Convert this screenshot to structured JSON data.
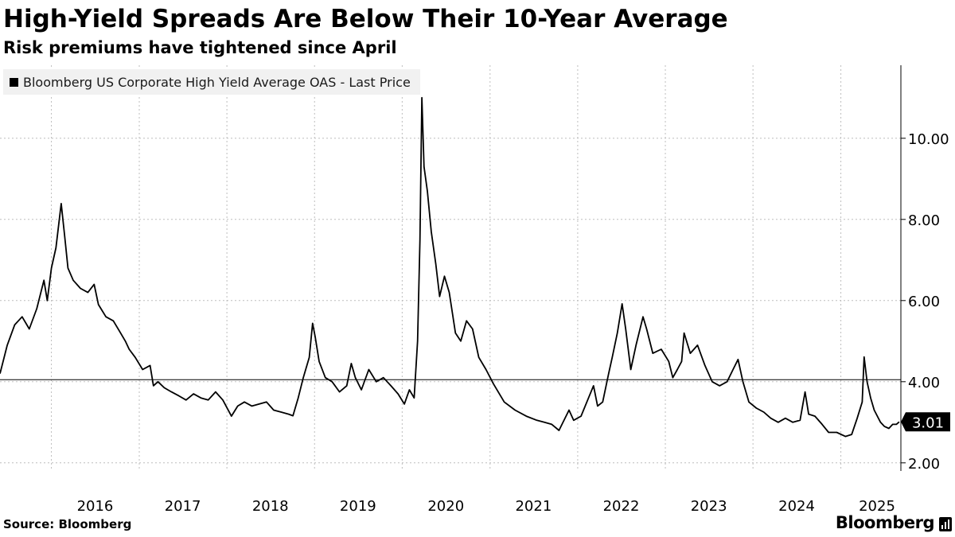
{
  "title": "High-Yield Spreads Are Below Their 10-Year Average",
  "subtitle": "Risk premiums have tightened since April",
  "source": "Source: Bloomberg",
  "brand": "Bloomberg",
  "chart_data": {
    "type": "line",
    "series": [
      {
        "name": "Bloomberg US Corporate High Yield Average OAS - Last Price",
        "color": "#000000",
        "points": [
          [
            "2015-06-01",
            4.2
          ],
          [
            "2015-07-01",
            4.9
          ],
          [
            "2015-08-01",
            5.4
          ],
          [
            "2015-09-01",
            5.6
          ],
          [
            "2015-10-01",
            5.3
          ],
          [
            "2015-11-01",
            5.8
          ],
          [
            "2015-12-01",
            6.5
          ],
          [
            "2015-12-15",
            6.0
          ],
          [
            "2016-01-01",
            6.8
          ],
          [
            "2016-01-20",
            7.3
          ],
          [
            "2016-02-11",
            8.39
          ],
          [
            "2016-02-25",
            7.6
          ],
          [
            "2016-03-10",
            6.8
          ],
          [
            "2016-04-01",
            6.5
          ],
          [
            "2016-05-01",
            6.3
          ],
          [
            "2016-06-01",
            6.2
          ],
          [
            "2016-06-27",
            6.4
          ],
          [
            "2016-07-15",
            5.9
          ],
          [
            "2016-08-15",
            5.6
          ],
          [
            "2016-09-15",
            5.5
          ],
          [
            "2016-10-15",
            5.2
          ],
          [
            "2016-11-04",
            5.0
          ],
          [
            "2016-11-20",
            4.8
          ],
          [
            "2016-12-15",
            4.6
          ],
          [
            "2017-01-15",
            4.3
          ],
          [
            "2017-02-15",
            4.4
          ],
          [
            "2017-03-01",
            3.9
          ],
          [
            "2017-03-20",
            4.0
          ],
          [
            "2017-04-15",
            3.85
          ],
          [
            "2017-05-15",
            3.75
          ],
          [
            "2017-06-15",
            3.65
          ],
          [
            "2017-07-15",
            3.55
          ],
          [
            "2017-08-15",
            3.7
          ],
          [
            "2017-09-15",
            3.6
          ],
          [
            "2017-10-15",
            3.55
          ],
          [
            "2017-11-15",
            3.75
          ],
          [
            "2017-12-15",
            3.55
          ],
          [
            "2018-01-20",
            3.15
          ],
          [
            "2018-02-15",
            3.4
          ],
          [
            "2018-03-15",
            3.5
          ],
          [
            "2018-04-15",
            3.4
          ],
          [
            "2018-05-15",
            3.45
          ],
          [
            "2018-06-15",
            3.5
          ],
          [
            "2018-07-15",
            3.3
          ],
          [
            "2018-08-15",
            3.25
          ],
          [
            "2018-09-15",
            3.2
          ],
          [
            "2018-10-03",
            3.16
          ],
          [
            "2018-10-25",
            3.6
          ],
          [
            "2018-11-15",
            4.1
          ],
          [
            "2018-12-10",
            4.6
          ],
          [
            "2018-12-24",
            5.44
          ],
          [
            "2019-01-04",
            5.1
          ],
          [
            "2019-01-20",
            4.5
          ],
          [
            "2019-02-15",
            4.1
          ],
          [
            "2019-03-15",
            4.0
          ],
          [
            "2019-04-15",
            3.75
          ],
          [
            "2019-05-15",
            3.9
          ],
          [
            "2019-06-03",
            4.45
          ],
          [
            "2019-06-20",
            4.1
          ],
          [
            "2019-07-15",
            3.8
          ],
          [
            "2019-08-15",
            4.3
          ],
          [
            "2019-09-15",
            4.0
          ],
          [
            "2019-10-15",
            4.1
          ],
          [
            "2019-11-15",
            3.9
          ],
          [
            "2019-12-15",
            3.7
          ],
          [
            "2020-01-10",
            3.45
          ],
          [
            "2020-01-31",
            3.8
          ],
          [
            "2020-02-20",
            3.6
          ],
          [
            "2020-03-05",
            5.0
          ],
          [
            "2020-03-15",
            7.5
          ],
          [
            "2020-03-23",
            11.0
          ],
          [
            "2020-04-01",
            9.3
          ],
          [
            "2020-04-15",
            8.7
          ],
          [
            "2020-05-01",
            7.7
          ],
          [
            "2020-05-20",
            6.9
          ],
          [
            "2020-06-05",
            6.1
          ],
          [
            "2020-06-25",
            6.6
          ],
          [
            "2020-07-15",
            6.2
          ],
          [
            "2020-08-10",
            5.2
          ],
          [
            "2020-09-01",
            5.0
          ],
          [
            "2020-09-25",
            5.5
          ],
          [
            "2020-10-20",
            5.3
          ],
          [
            "2020-11-15",
            4.6
          ],
          [
            "2020-12-15",
            4.3
          ],
          [
            "2021-01-15",
            3.95
          ],
          [
            "2021-03-01",
            3.5
          ],
          [
            "2021-04-15",
            3.3
          ],
          [
            "2021-06-01",
            3.15
          ],
          [
            "2021-07-15",
            3.05
          ],
          [
            "2021-08-15",
            3.0
          ],
          [
            "2021-09-15",
            2.95
          ],
          [
            "2021-10-15",
            2.8
          ],
          [
            "2021-11-26",
            3.3
          ],
          [
            "2021-12-15",
            3.05
          ],
          [
            "2022-01-15",
            3.15
          ],
          [
            "2022-02-15",
            3.6
          ],
          [
            "2022-03-08",
            3.9
          ],
          [
            "2022-03-25",
            3.4
          ],
          [
            "2022-04-15",
            3.5
          ],
          [
            "2022-05-10",
            4.2
          ],
          [
            "2022-05-25",
            4.6
          ],
          [
            "2022-06-15",
            5.2
          ],
          [
            "2022-07-05",
            5.92
          ],
          [
            "2022-07-20",
            5.3
          ],
          [
            "2022-08-10",
            4.3
          ],
          [
            "2022-09-01",
            4.9
          ],
          [
            "2022-09-30",
            5.6
          ],
          [
            "2022-10-15",
            5.3
          ],
          [
            "2022-11-10",
            4.7
          ],
          [
            "2022-12-15",
            4.8
          ],
          [
            "2023-01-15",
            4.5
          ],
          [
            "2023-02-01",
            4.1
          ],
          [
            "2023-02-20",
            4.3
          ],
          [
            "2023-03-10",
            4.5
          ],
          [
            "2023-03-20",
            5.2
          ],
          [
            "2023-04-15",
            4.7
          ],
          [
            "2023-05-15",
            4.9
          ],
          [
            "2023-06-15",
            4.4
          ],
          [
            "2023-07-15",
            4.0
          ],
          [
            "2023-08-15",
            3.9
          ],
          [
            "2023-09-15",
            4.0
          ],
          [
            "2023-10-10",
            4.3
          ],
          [
            "2023-10-31",
            4.55
          ],
          [
            "2023-11-20",
            4.0
          ],
          [
            "2023-12-15",
            3.5
          ],
          [
            "2024-01-15",
            3.35
          ],
          [
            "2024-02-15",
            3.25
          ],
          [
            "2024-03-15",
            3.1
          ],
          [
            "2024-04-15",
            3.0
          ],
          [
            "2024-05-15",
            3.1
          ],
          [
            "2024-06-15",
            3.0
          ],
          [
            "2024-07-15",
            3.05
          ],
          [
            "2024-08-05",
            3.75
          ],
          [
            "2024-08-20",
            3.2
          ],
          [
            "2024-09-15",
            3.15
          ],
          [
            "2024-10-15",
            2.95
          ],
          [
            "2024-11-11",
            2.75
          ],
          [
            "2024-12-15",
            2.75
          ],
          [
            "2025-01-20",
            2.65
          ],
          [
            "2025-02-15",
            2.7
          ],
          [
            "2025-03-10",
            3.1
          ],
          [
            "2025-03-31",
            3.5
          ],
          [
            "2025-04-08",
            4.61
          ],
          [
            "2025-04-20",
            4.0
          ],
          [
            "2025-05-05",
            3.6
          ],
          [
            "2025-05-20",
            3.3
          ],
          [
            "2025-06-15",
            3.0
          ],
          [
            "2025-07-01",
            2.9
          ],
          [
            "2025-07-20",
            2.85
          ],
          [
            "2025-08-05",
            2.95
          ],
          [
            "2025-08-20",
            2.95
          ],
          [
            "2025-09-01",
            3.01
          ]
        ]
      }
    ],
    "reference_line": {
      "value": 4.05
    },
    "last_value_label": "3.01",
    "y_axis": {
      "position": "right",
      "range": [
        1.8,
        11.8
      ],
      "ticks": [
        2.0,
        4.0,
        6.0,
        8.0,
        10.0
      ],
      "tick_labels": [
        "2.00",
        "4.00",
        "6.00",
        "8.00",
        "10.00"
      ]
    },
    "x_axis": {
      "range": [
        "2015-06-01",
        "2025-09-08"
      ],
      "year_labels": [
        "2016",
        "2017",
        "2018",
        "2019",
        "2020",
        "2021",
        "2022",
        "2023",
        "2024",
        "2025"
      ],
      "year_gridlines": [
        "2016-01-01",
        "2017-01-01",
        "2018-01-01",
        "2019-01-01",
        "2020-01-01",
        "2021-01-01",
        "2022-01-01",
        "2023-01-01",
        "2024-01-01",
        "2025-01-01"
      ]
    },
    "grid": true,
    "legend": "top-left"
  }
}
